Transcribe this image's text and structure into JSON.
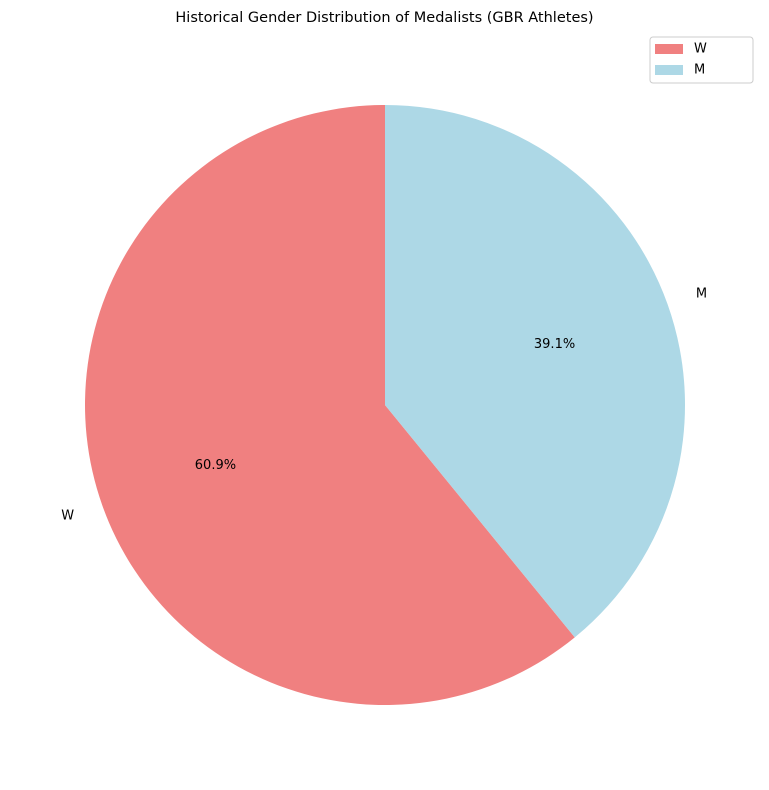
{
  "chart_data": {
    "type": "pie",
    "title": "Historical Gender Distribution of Medalists (GBR Athletes)",
    "slices": [
      {
        "label": "W",
        "value": 60.9,
        "pct_label": "60.9%",
        "color": "#F08080"
      },
      {
        "label": "M",
        "value": 39.1,
        "pct_label": "39.1%",
        "color": "#ADD8E6"
      }
    ],
    "start_angle_deg": 90,
    "direction": "counterclockwise",
    "legend": {
      "position": "top-right",
      "entries": [
        "W",
        "M"
      ]
    }
  }
}
